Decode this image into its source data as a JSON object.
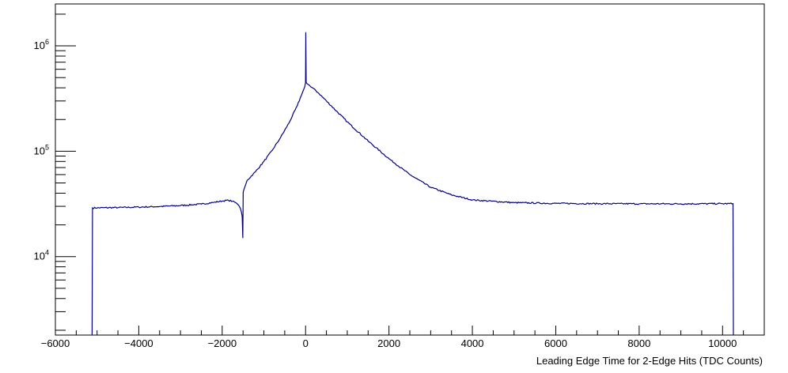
{
  "chart_data": {
    "type": "line",
    "title": "",
    "xlabel": "Leading Edge Time for 2-Edge Hits (TDC Counts)",
    "ylabel": "",
    "xlim": [
      -6000,
      11000
    ],
    "ylim": [
      1800,
      2500000
    ],
    "y_scale": "log",
    "grid": false,
    "legend": "none",
    "x_ticks": [
      -6000,
      -4000,
      -2000,
      0,
      2000,
      4000,
      6000,
      8000,
      10000
    ],
    "x_tick_labels": [
      "−6000",
      "−4000",
      "−2000",
      "0",
      "2000",
      "4000",
      "6000",
      "8000",
      "10000"
    ],
    "y_ticks": [
      {
        "value": 10000,
        "base": "10",
        "exp": "4"
      },
      {
        "value": 100000,
        "base": "10",
        "exp": "5"
      },
      {
        "value": 1000000,
        "base": "10",
        "exp": "6"
      }
    ],
    "series": [
      {
        "color": "#000080",
        "x": [
          -5120,
          -5110,
          -4500,
          -4000,
          -3500,
          -3000,
          -2500,
          -2200,
          -2000,
          -1850,
          -1750,
          -1650,
          -1600,
          -1560,
          -1540,
          -1520,
          -1505,
          -1495,
          -1480,
          -1400,
          -1200,
          -1000,
          -800,
          -600,
          -400,
          -200,
          -100,
          -20,
          0,
          5,
          15,
          30,
          100,
          300,
          500,
          1000,
          1500,
          2000,
          2500,
          3000,
          3500,
          4000,
          5000,
          6000,
          7000,
          8000,
          9000,
          10000,
          10250,
          10260
        ],
        "y": [
          1800,
          29000,
          29200,
          29500,
          29900,
          30500,
          31500,
          32700,
          33700,
          34200,
          33500,
          32000,
          30500,
          28500,
          26500,
          24000,
          15000,
          41000,
          43000,
          53000,
          64000,
          80000,
          102000,
          135000,
          185000,
          270000,
          340000,
          410000,
          450000,
          1350000,
          450000,
          440000,
          420000,
          360000,
          300000,
          190000,
          125000,
          85000,
          60000,
          45500,
          38500,
          34500,
          32500,
          32000,
          31800,
          31700,
          31700,
          31800,
          31800,
          1800
        ]
      }
    ]
  }
}
